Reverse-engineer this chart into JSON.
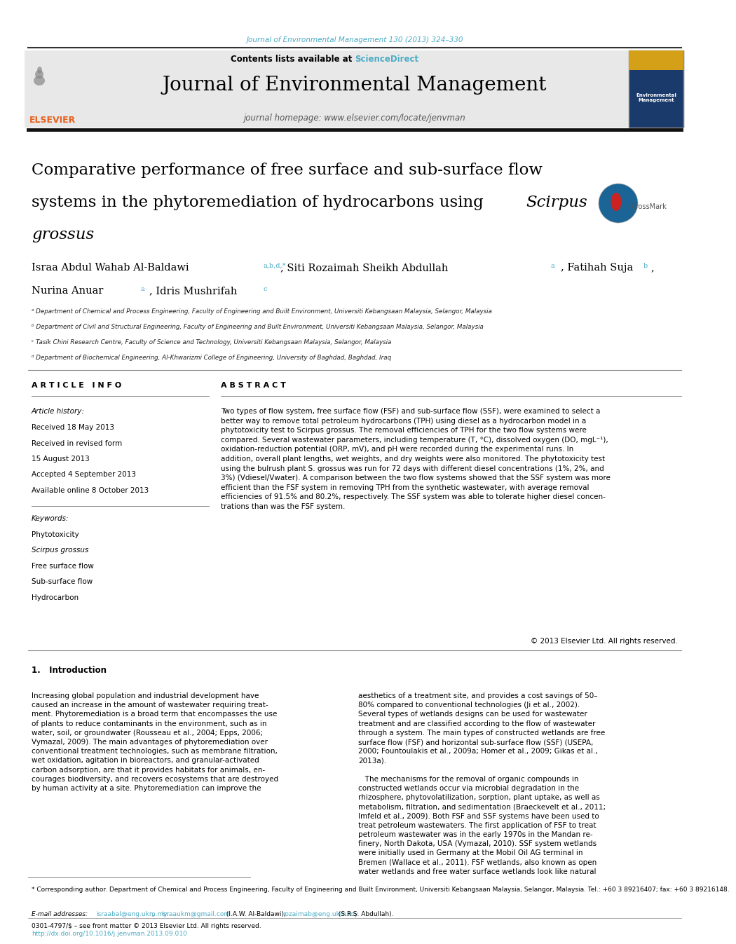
{
  "bg_color": "#ffffff",
  "page_width": 9.92,
  "page_height": 13.23,
  "journal_ref": "Journal of Environmental Management 130 (2013) 324–330",
  "journal_ref_color": "#4bacc6",
  "sciencedirect_color": "#4bacc6",
  "journal_title": "Journal of Environmental Management",
  "journal_homepage": "journal homepage: www.elsevier.com/locate/jenvman",
  "header_bg": "#e8e8e8",
  "elsevier_color": "#e8601c",
  "affil_a": "ᵃ Department of Chemical and Process Engineering, Faculty of Engineering and Built Environment, Universiti Kebangsaan Malaysia, Selangor, Malaysia",
  "affil_b": "ᵇ Department of Civil and Structural Engineering, Faculty of Engineering and Built Environment, Universiti Kebangsaan Malaysia, Selangor, Malaysia",
  "affil_c": "ᶜ Tasik Chini Research Centre, Faculty of Science and Technology, Universiti Kebangsaan Malaysia, Selangor, Malaysia",
  "affil_d": "ᵈ Department of Biochemical Engineering, Al-Khwarizmi College of Engineering, University of Baghdad, Baghdad, Iraq",
  "article_info_header": "A R T I C L E   I N F O",
  "abstract_header": "A B S T R A C T",
  "article_history_label": "Article history:",
  "received1": "Received 18 May 2013",
  "revised_label": "Received in revised form",
  "revised_date": "15 August 2013",
  "accepted": "Accepted 4 September 2013",
  "available": "Available online 8 October 2013",
  "keywords_label": "Keywords:",
  "kw1": "Phytotoxicity",
  "kw2": "Scirpus grossus",
  "kw3": "Free surface flow",
  "kw4": "Sub-surface flow",
  "kw5": "Hydrocarbon",
  "copyright": "© 2013 Elsevier Ltd. All rights reserved.",
  "intro_header": "1.   Introduction",
  "footer_text1": "0301-4797/$ – see front matter © 2013 Elsevier Ltd. All rights reserved.",
  "footer_text2": "http://dx.doi.org/10.1016/j.jenvman.2013.09.010",
  "footer_color2": "#4bacc6",
  "corr_author_note": "* Corresponding author. Department of Chemical and Process Engineering, Faculty of Engineering and Built Environment, Universiti Kebangsaan Malaysia, Selangor, Malaysia. Tel.: +60 3 89216407; fax: +60 3 89216148.",
  "email_label": "E-mail addresses:",
  "email1": "israabal@eng.ukm.my",
  "email2": "israaukm@gmail.com",
  "email_text": " (I.A.W. Al-Baldawi),",
  "email3": "rozaimab@eng.ukm.my",
  "email_text2": " (S.R.S. Abdullah)."
}
